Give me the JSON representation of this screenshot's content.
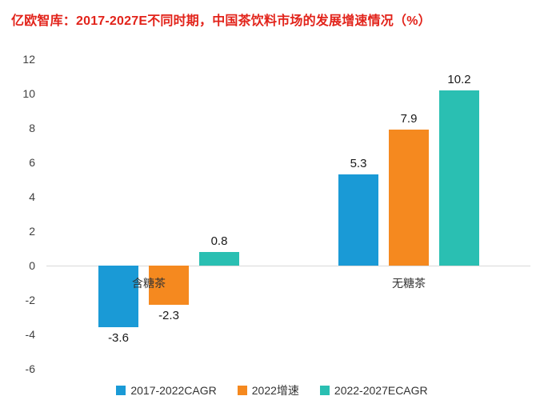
{
  "title": "亿欧智库：2017-2027E不同时期，中国茶饮料市场的发展增速情况（%）",
  "chart_data": {
    "type": "bar",
    "categories": [
      "含糖茶",
      "无糖茶"
    ],
    "series": [
      {
        "name": "2017-2022CAGR",
        "color": "#1a9ad6",
        "values": [
          -3.6,
          5.3
        ]
      },
      {
        "name": "2022增速",
        "color": "#f5891f",
        "values": [
          -2.3,
          7.9
        ]
      },
      {
        "name": "2022-2027ECAGR",
        "color": "#2abfb2",
        "values": [
          0.8,
          10.2
        ]
      }
    ],
    "ylim": [
      -6,
      12
    ],
    "yticks": [
      12,
      10,
      8,
      6,
      4,
      2,
      0,
      -2,
      -4,
      -6
    ],
    "grid": false,
    "legend_position": "bottom",
    "baseline_color": "#d9d9d9",
    "title_color": "#e2231a"
  }
}
